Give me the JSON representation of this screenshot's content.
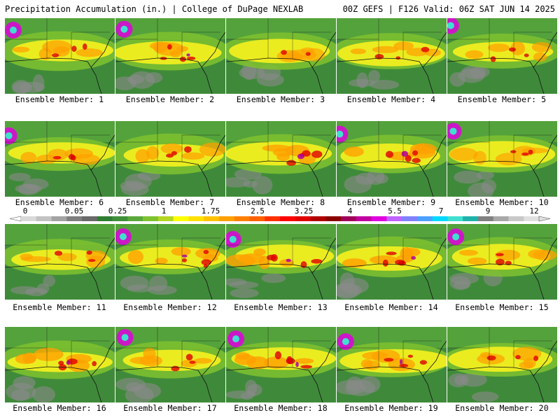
{
  "header": {
    "left_text": "Precipitation Accumulation (in.) | College of DuPage NEXLAB",
    "right_text": "00Z GEFS | F126 Valid: 06Z SAT JUN 14 2025"
  },
  "members": [
    {
      "label": "Ensemble Member: 1",
      "intensity": 0.55
    },
    {
      "label": "Ensemble Member: 2",
      "intensity": 0.65
    },
    {
      "label": "Ensemble Member: 3",
      "intensity": 0.35
    },
    {
      "label": "Ensemble Member: 4",
      "intensity": 0.55
    },
    {
      "label": "Ensemble Member: 5",
      "intensity": 0.5
    },
    {
      "label": "Ensemble Member: 6",
      "intensity": 0.55
    },
    {
      "label": "Ensemble Member: 7",
      "intensity": 0.55
    },
    {
      "label": "Ensemble Member: 8",
      "intensity": 0.7
    },
    {
      "label": "Ensemble Member: 9",
      "intensity": 0.7
    },
    {
      "label": "Ensemble Member: 10",
      "intensity": 0.4
    },
    {
      "label": "Ensemble Member: 11",
      "intensity": 0.5
    },
    {
      "label": "Ensemble Member: 12",
      "intensity": 0.7
    },
    {
      "label": "Ensemble Member: 13",
      "intensity": 0.75
    },
    {
      "label": "Ensemble Member: 14",
      "intensity": 0.75
    },
    {
      "label": "Ensemble Member: 15",
      "intensity": 0.6
    },
    {
      "label": "Ensemble Member: 16",
      "intensity": 0.7
    },
    {
      "label": "Ensemble Member: 17",
      "intensity": 0.6
    },
    {
      "label": "Ensemble Member: 18",
      "intensity": 0.8
    },
    {
      "label": "Ensemble Member: 19",
      "intensity": 0.65
    },
    {
      "label": "Ensemble Member: 20",
      "intensity": 0.5
    }
  ],
  "colorbar": {
    "units": "in.",
    "tick_labels": [
      "0",
      "0.05",
      "0.25",
      "1",
      "1.75",
      "2.5",
      "3.25",
      "4",
      "5.5",
      "7",
      "9",
      "12"
    ],
    "colors": [
      "#d9d9d9",
      "#c2c2c2",
      "#a3a3a3",
      "#7f7f7f",
      "#6a6a6a",
      "#2e7d32",
      "#3f8f3a",
      "#5aa83c",
      "#7fc22f",
      "#b3d622",
      "#ffff00",
      "#ffe000",
      "#ffc000",
      "#ffa000",
      "#ff8000",
      "#ff6000",
      "#ff3000",
      "#ff0000",
      "#e00000",
      "#b00000",
      "#8b0000",
      "#a0005a",
      "#c000a0",
      "#e000e0",
      "#c060ff",
      "#8080ff",
      "#4ca0ff",
      "#00d8ff",
      "#40e0d0",
      "#20b2aa",
      "#808080",
      "#a8a8a8",
      "#c8c8c8",
      "#e0e0e0"
    ]
  }
}
